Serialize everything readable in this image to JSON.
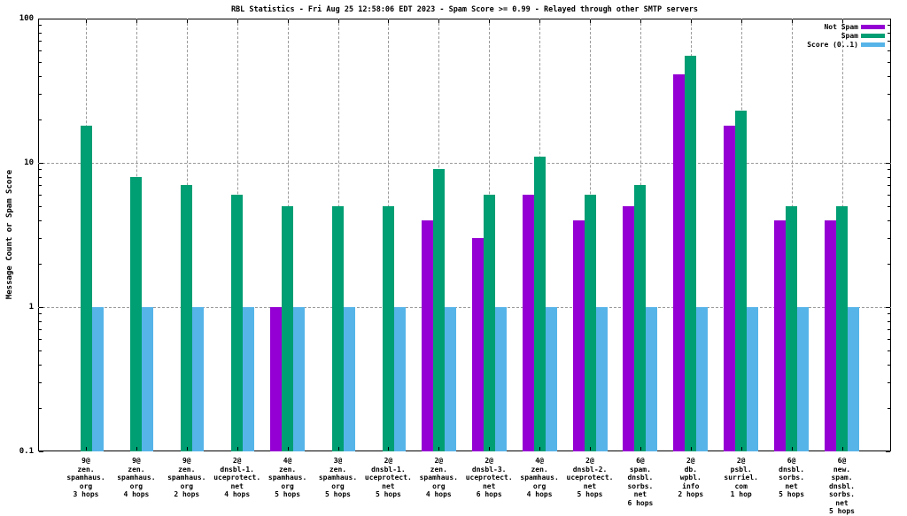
{
  "chart_data": {
    "type": "bar",
    "title": "RBL Statistics - Fri Aug 25 12:58:06 EDT 2023 - Spam Score >= 0.99 - Relayed through other SMTP servers",
    "ylabel": "Message Count or Spam Score",
    "xlabel": "",
    "y_scale": "log",
    "ylim": [
      0.1,
      100
    ],
    "grid": true,
    "legend_position": "top-right",
    "y_ticks": [
      {
        "value": 100,
        "label": "100"
      },
      {
        "value": 10,
        "label": "10"
      },
      {
        "value": 1,
        "label": "1"
      },
      {
        "value": 0.1,
        "label": "0.1"
      }
    ],
    "categories": [
      [
        "9@",
        "zen.",
        "spamhaus.",
        "org",
        "3 hops"
      ],
      [
        "9@",
        "zen.",
        "spamhaus.",
        "org",
        "4 hops"
      ],
      [
        "9@",
        "zen.",
        "spamhaus.",
        "org",
        "2 hops"
      ],
      [
        "2@",
        "dnsbl-1.",
        "uceprotect.",
        "net",
        "4 hops"
      ],
      [
        "4@",
        "zen.",
        "spamhaus.",
        "org",
        "5 hops"
      ],
      [
        "3@",
        "zen.",
        "spamhaus.",
        "org",
        "5 hops"
      ],
      [
        "2@",
        "dnsbl-1.",
        "uceprotect.",
        "net",
        "5 hops"
      ],
      [
        "2@",
        "zen.",
        "spamhaus.",
        "org",
        "4 hops"
      ],
      [
        "2@",
        "dnsbl-3.",
        "uceprotect.",
        "net",
        "6 hops"
      ],
      [
        "4@",
        "zen.",
        "spamhaus.",
        "org",
        "4 hops"
      ],
      [
        "2@",
        "dnsbl-2.",
        "uceprotect.",
        "net",
        "5 hops"
      ],
      [
        "6@",
        "spam.",
        "dnsbl.",
        "sorbs.",
        "net",
        "6 hops"
      ],
      [
        "2@",
        "db.",
        "wpbl.",
        "info",
        "2 hops"
      ],
      [
        "2@",
        "psbl.",
        "surriel.",
        "com",
        "1 hop"
      ],
      [
        "6@",
        "dnsbl.",
        "sorbs.",
        "net",
        "5 hops"
      ],
      [
        "6@",
        "new.",
        "spam.",
        "dnsbl.",
        "sorbs.",
        "net",
        "5 hops"
      ]
    ],
    "series": [
      {
        "name": "Not Spam",
        "color": "#9400d3",
        "values": [
          0,
          0,
          0,
          0,
          1,
          0,
          0,
          4,
          3,
          6,
          4,
          5,
          41,
          18,
          4,
          4
        ]
      },
      {
        "name": "Spam",
        "color": "#009e73",
        "values": [
          18,
          8,
          7,
          6,
          5,
          5,
          5,
          9,
          6,
          11,
          6,
          7,
          55,
          23,
          5,
          5
        ]
      },
      {
        "name": "Score (0..1)",
        "color": "#56b4e9",
        "values": [
          1,
          1,
          1,
          1,
          1,
          1,
          1,
          1,
          1,
          1,
          1,
          1,
          1,
          1,
          1,
          1
        ]
      }
    ]
  }
}
